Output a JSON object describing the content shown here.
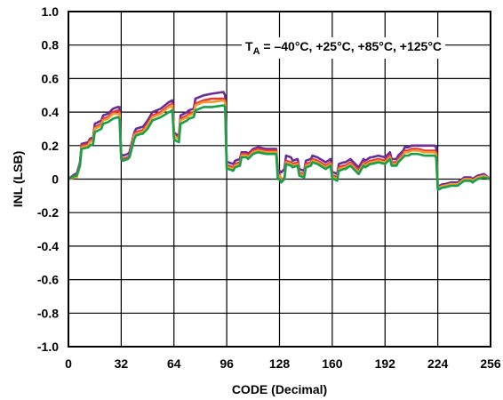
{
  "chart_data": {
    "type": "line",
    "xlabel": "CODE (Decimal)",
    "ylabel": "INL (LSB)",
    "xlim": [
      0,
      256
    ],
    "ylim": [
      -1.0,
      1.0
    ],
    "xticks": [
      "0",
      "32",
      "64",
      "96",
      "128",
      "160",
      "192",
      "224",
      "256"
    ],
    "yticks": [
      "1.0",
      "0.8",
      "0.6",
      "0.4",
      "0.2",
      "0",
      "-0.2",
      "-0.4",
      "-0.6",
      "-0.8",
      "-1.0"
    ],
    "grid": true,
    "annotation": {
      "prefix": "T",
      "subscript": "A",
      "rest": " = –40°C, +25°C, +85°C, +125°C"
    },
    "x": [
      0,
      4,
      5,
      7,
      8,
      12,
      13,
      15,
      16,
      20,
      21,
      24,
      27,
      30,
      31,
      32,
      33,
      36,
      37,
      40,
      41,
      44,
      45,
      48,
      51,
      56,
      61,
      63,
      64,
      65,
      67,
      68,
      72,
      73,
      76,
      77,
      82,
      87,
      94,
      95,
      96,
      97,
      100,
      101,
      104,
      105,
      108,
      109,
      112,
      115,
      120,
      124,
      126,
      127,
      128,
      129,
      130,
      131,
      132,
      135,
      136,
      139,
      140,
      143,
      144,
      147,
      148,
      151,
      156,
      159,
      160,
      161,
      163,
      164,
      167,
      168,
      171,
      172,
      175,
      176,
      179,
      180,
      183,
      184,
      188,
      192,
      195,
      196,
      199,
      200,
      203,
      204,
      206,
      208,
      212,
      216,
      220,
      222,
      223,
      224,
      225,
      227,
      228,
      232,
      236,
      240,
      244,
      245,
      248,
      252,
      256
    ],
    "series": [
      {
        "color": "#6a2c99",
        "values": [
          0,
          0.03,
          0.03,
          0.1,
          0.21,
          0.22,
          0.24,
          0.25,
          0.33,
          0.35,
          0.38,
          0.39,
          0.42,
          0.43,
          0.43,
          0.15,
          0.14,
          0.15,
          0.16,
          0.28,
          0.3,
          0.31,
          0.31,
          0.35,
          0.4,
          0.42,
          0.46,
          0.47,
          0.28,
          0.27,
          0.26,
          0.38,
          0.4,
          0.41,
          0.42,
          0.48,
          0.5,
          0.51,
          0.52,
          0.5,
          0.1,
          0.1,
          0.09,
          0.11,
          0.12,
          0.16,
          0.16,
          0.15,
          0.18,
          0.19,
          0.18,
          0.18,
          0.18,
          0.05,
          0.05,
          0.04,
          0.05,
          0.06,
          0.14,
          0.13,
          0.11,
          0.12,
          0.06,
          0.05,
          0.11,
          0.12,
          0.14,
          0.13,
          0.1,
          0.12,
          0.04,
          0.04,
          0.03,
          0.09,
          0.1,
          0.1,
          0.12,
          0.11,
          0.08,
          0.07,
          0.12,
          0.11,
          0.13,
          0.13,
          0.14,
          0.13,
          0.16,
          0.12,
          0.12,
          0.14,
          0.17,
          0.19,
          0.19,
          0.2,
          0.2,
          0.2,
          0.2,
          0.2,
          0.19,
          -0.04,
          -0.04,
          -0.03,
          -0.03,
          -0.02,
          -0.02,
          0.01,
          0.01,
          0.0,
          0.02,
          0.03,
          0.0
        ]
      },
      {
        "color": "#e8393a",
        "values": [
          0,
          0.02,
          0.02,
          0.09,
          0.2,
          0.21,
          0.23,
          0.24,
          0.31,
          0.33,
          0.36,
          0.37,
          0.4,
          0.41,
          0.4,
          0.13,
          0.12,
          0.13,
          0.14,
          0.27,
          0.28,
          0.29,
          0.29,
          0.33,
          0.38,
          0.4,
          0.44,
          0.45,
          0.27,
          0.26,
          0.25,
          0.36,
          0.38,
          0.39,
          0.4,
          0.45,
          0.47,
          0.48,
          0.48,
          0.47,
          0.08,
          0.08,
          0.07,
          0.09,
          0.1,
          0.15,
          0.15,
          0.14,
          0.17,
          0.18,
          0.17,
          0.17,
          0.17,
          0.03,
          0.03,
          -0.01,
          0.0,
          0.01,
          0.11,
          0.1,
          0.09,
          0.1,
          0.04,
          0.03,
          0.09,
          0.1,
          0.12,
          0.11,
          0.08,
          0.1,
          0.02,
          0.02,
          0.01,
          0.07,
          0.08,
          0.08,
          0.1,
          0.09,
          0.06,
          0.05,
          0.1,
          0.09,
          0.11,
          0.11,
          0.12,
          0.11,
          0.14,
          0.1,
          0.1,
          0.12,
          0.15,
          0.17,
          0.17,
          0.18,
          0.18,
          0.17,
          0.17,
          0.17,
          0.16,
          -0.05,
          -0.05,
          -0.04,
          -0.04,
          -0.03,
          -0.03,
          0.0,
          0.0,
          -0.01,
          0.01,
          0.02,
          0.0
        ]
      },
      {
        "color": "#f39a2c",
        "values": [
          0,
          0.01,
          0.01,
          0.08,
          0.19,
          0.2,
          0.22,
          0.23,
          0.3,
          0.32,
          0.35,
          0.36,
          0.39,
          0.39,
          0.39,
          0.12,
          0.11,
          0.12,
          0.13,
          0.26,
          0.27,
          0.28,
          0.28,
          0.32,
          0.37,
          0.39,
          0.43,
          0.44,
          0.26,
          0.25,
          0.24,
          0.35,
          0.37,
          0.38,
          0.39,
          0.44,
          0.46,
          0.46,
          0.47,
          0.46,
          0.07,
          0.07,
          0.06,
          0.08,
          0.09,
          0.14,
          0.14,
          0.13,
          0.16,
          0.17,
          0.16,
          0.16,
          0.16,
          0.02,
          0.02,
          -0.02,
          -0.01,
          0.0,
          0.1,
          0.09,
          0.08,
          0.09,
          0.03,
          0.02,
          0.08,
          0.09,
          0.11,
          0.1,
          0.07,
          0.09,
          0.01,
          0.01,
          0.0,
          0.06,
          0.07,
          0.07,
          0.09,
          0.08,
          0.05,
          0.04,
          0.09,
          0.08,
          0.1,
          0.1,
          0.11,
          0.1,
          0.13,
          0.09,
          0.09,
          0.11,
          0.14,
          0.16,
          0.16,
          0.17,
          0.17,
          0.16,
          0.16,
          0.16,
          0.15,
          -0.05,
          -0.05,
          -0.04,
          -0.04,
          -0.03,
          -0.03,
          0.0,
          0.0,
          -0.01,
          0.01,
          0.02,
          0.0
        ]
      },
      {
        "color": "#17a04b",
        "values": [
          0,
          0.02,
          0.02,
          0.08,
          0.18,
          0.19,
          0.2,
          0.21,
          0.28,
          0.3,
          0.33,
          0.34,
          0.36,
          0.37,
          0.36,
          0.12,
          0.11,
          0.12,
          0.13,
          0.24,
          0.26,
          0.27,
          0.27,
          0.3,
          0.35,
          0.37,
          0.4,
          0.41,
          0.24,
          0.23,
          0.22,
          0.33,
          0.35,
          0.36,
          0.37,
          0.41,
          0.43,
          0.43,
          0.44,
          0.43,
          0.06,
          0.06,
          0.05,
          0.07,
          0.08,
          0.13,
          0.13,
          0.12,
          0.15,
          0.16,
          0.15,
          0.15,
          0.15,
          0.0,
          0.0,
          -0.02,
          -0.01,
          0.0,
          0.09,
          0.08,
          0.07,
          0.08,
          0.02,
          0.01,
          0.07,
          0.08,
          0.1,
          0.09,
          0.06,
          0.08,
          0.0,
          0.0,
          -0.01,
          0.05,
          0.06,
          0.06,
          0.08,
          0.07,
          0.04,
          0.03,
          0.08,
          0.07,
          0.09,
          0.09,
          0.1,
          0.09,
          0.12,
          0.08,
          0.08,
          0.1,
          0.13,
          0.14,
          0.14,
          0.15,
          0.15,
          0.14,
          0.14,
          0.14,
          0.13,
          -0.06,
          -0.06,
          -0.05,
          -0.05,
          -0.04,
          -0.04,
          -0.01,
          -0.01,
          -0.02,
          0.0,
          0.01,
          0.0
        ]
      }
    ]
  }
}
